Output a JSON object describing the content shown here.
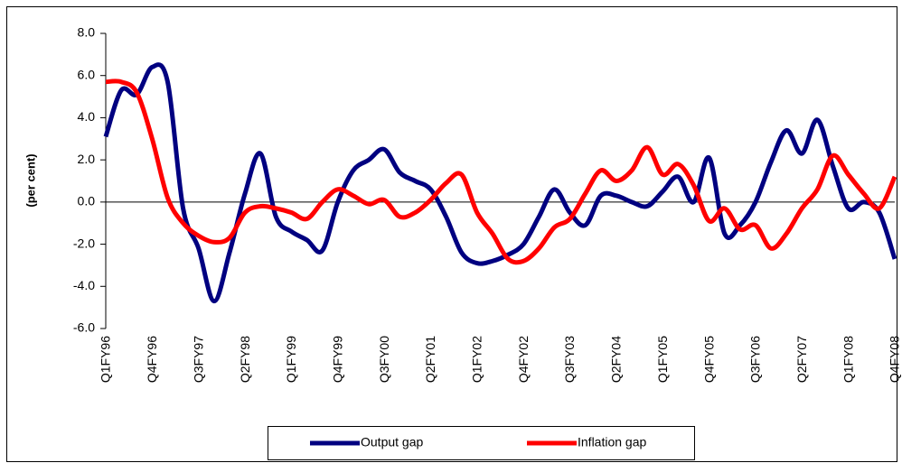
{
  "chart_data": {
    "type": "line",
    "y_label": "(per cent)",
    "categories": [
      "Q1FY96",
      null,
      null,
      "Q4FY96",
      null,
      null,
      "Q3FY97",
      null,
      null,
      "Q2FY98",
      null,
      null,
      "Q1FY99",
      null,
      null,
      "Q4FY99",
      null,
      null,
      "Q3FY00",
      null,
      null,
      "Q2FY01",
      null,
      null,
      "Q1FY02",
      null,
      null,
      "Q4FY02",
      null,
      null,
      "Q3FY03",
      null,
      null,
      "Q2FY04",
      null,
      null,
      "Q1FY05",
      null,
      null,
      "Q4FY05",
      null,
      null,
      "Q3FY06",
      null,
      null,
      "Q2FY07",
      null,
      null,
      "Q1FY08",
      null,
      null,
      "Q4FY08"
    ],
    "series": [
      {
        "name": "Output gap",
        "color": "#000080",
        "values": [
          3.1,
          5.3,
          5.1,
          6.4,
          5.7,
          -0.3,
          -2.2,
          -4.7,
          -2.4,
          0.4,
          2.3,
          -0.7,
          -1.4,
          -1.8,
          -2.3,
          0.0,
          1.5,
          2.0,
          2.5,
          1.4,
          1.0,
          0.6,
          -0.7,
          -2.4,
          -2.9,
          -2.8,
          -2.5,
          -2.0,
          -0.7,
          0.6,
          -0.5,
          -1.1,
          0.3,
          0.3,
          0.0,
          -0.2,
          0.5,
          1.2,
          0.0,
          2.1,
          -1.5,
          -1.1,
          0.0,
          1.9,
          3.4,
          2.3,
          3.9,
          1.7,
          -0.3,
          0.0,
          -0.5,
          -2.7
        ]
      },
      {
        "name": "Inflation gap",
        "color": "#ff0000",
        "values": [
          5.7,
          5.7,
          5.2,
          3.0,
          0.2,
          -1.0,
          -1.6,
          -1.9,
          -1.7,
          -0.5,
          -0.2,
          -0.3,
          -0.5,
          -0.8,
          0.0,
          0.6,
          0.3,
          -0.1,
          0.1,
          -0.7,
          -0.5,
          0.1,
          0.9,
          1.3,
          -0.5,
          -1.5,
          -2.7,
          -2.8,
          -2.2,
          -1.2,
          -0.8,
          0.4,
          1.5,
          1.0,
          1.5,
          2.6,
          1.3,
          1.8,
          0.8,
          -0.9,
          -0.3,
          -1.3,
          -1.1,
          -2.2,
          -1.5,
          -0.3,
          0.6,
          2.2,
          1.3,
          0.4,
          -0.3,
          1.2
        ]
      }
    ],
    "ylim": [
      -6,
      8
    ],
    "yticks": [
      {
        "value": -6,
        "label": "-6.0"
      },
      {
        "value": -4,
        "label": "-4.0"
      },
      {
        "value": -2,
        "label": "-2.0"
      },
      {
        "value": 0,
        "label": "0.0"
      },
      {
        "value": 2,
        "label": "2.0"
      },
      {
        "value": 4,
        "label": "4.0"
      },
      {
        "value": 6,
        "label": "6.0"
      },
      {
        "value": 8,
        "label": "8.0"
      }
    ],
    "grid": false,
    "legend": "bottom"
  }
}
